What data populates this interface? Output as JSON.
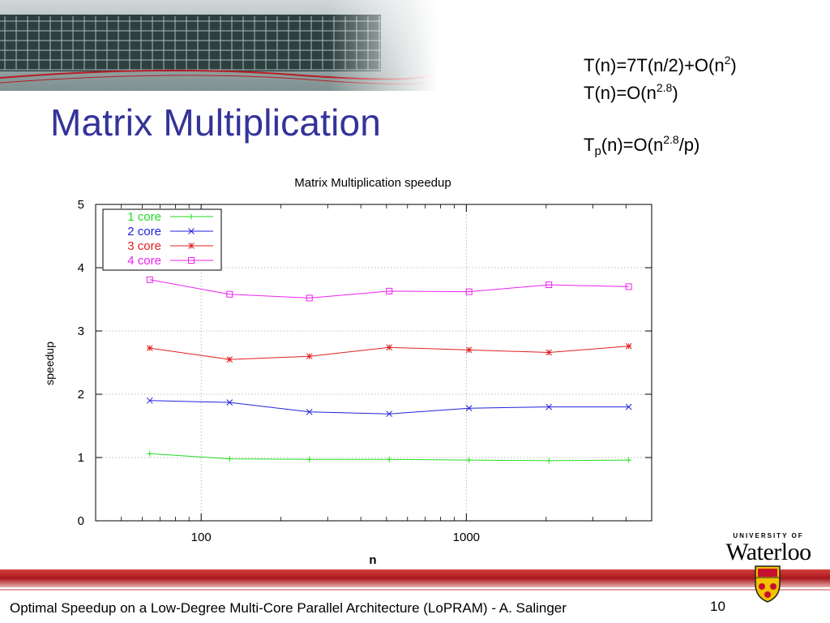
{
  "slide": {
    "title": "Matrix Multiplication",
    "footer": "Optimal Speedup on a Low-Degree Multi-Core Parallel Architecture (LoPRAM) - A. Salinger",
    "page_number": "10",
    "logo": {
      "line1": "UNIVERSITY OF",
      "line2": "Waterloo"
    },
    "formulas": {
      "line1": {
        "pre": "T(n)=7T(n/2)+O(n",
        "sup": "2",
        "post": ")"
      },
      "line2": {
        "pre": "T(n)=O(n",
        "sup": "2.8",
        "post": ")"
      },
      "line3": {
        "pre": "T",
        "sub": "p",
        "mid": "(n)=O(n",
        "sup": "2.8",
        "post": "/p)"
      }
    },
    "colors": {
      "title": "#33339a",
      "band": "#b51c22"
    }
  },
  "chart_data": {
    "type": "line",
    "title": "Matrix Multiplication speedup",
    "xlabel": "n",
    "ylabel": "speedup",
    "x_scale": "log",
    "x_range": [
      40,
      5000
    ],
    "ylim": [
      0,
      5
    ],
    "x_ticks": [
      100,
      1000
    ],
    "y_ticks": [
      0,
      1,
      2,
      3,
      4,
      5
    ],
    "grid": true,
    "legend_position": "top-left",
    "x": [
      64,
      128,
      256,
      512,
      1024,
      2048,
      4096
    ],
    "series": [
      {
        "name": "1 core",
        "color": "#22dd22",
        "marker": "plus",
        "values": [
          1.06,
          0.98,
          0.97,
          0.97,
          0.96,
          0.95,
          0.96
        ]
      },
      {
        "name": "2 core",
        "color": "#2222dd",
        "marker": "x",
        "values": [
          1.9,
          1.87,
          1.72,
          1.69,
          1.78,
          1.8,
          1.8
        ]
      },
      {
        "name": "3 core",
        "color": "#e02020",
        "marker": "star",
        "values": [
          2.73,
          2.55,
          2.6,
          2.74,
          2.7,
          2.66,
          2.76
        ]
      },
      {
        "name": "4 core",
        "color": "#ee22ee",
        "marker": "square",
        "values": [
          3.81,
          3.58,
          3.52,
          3.63,
          3.62,
          3.73,
          3.7
        ]
      }
    ]
  }
}
